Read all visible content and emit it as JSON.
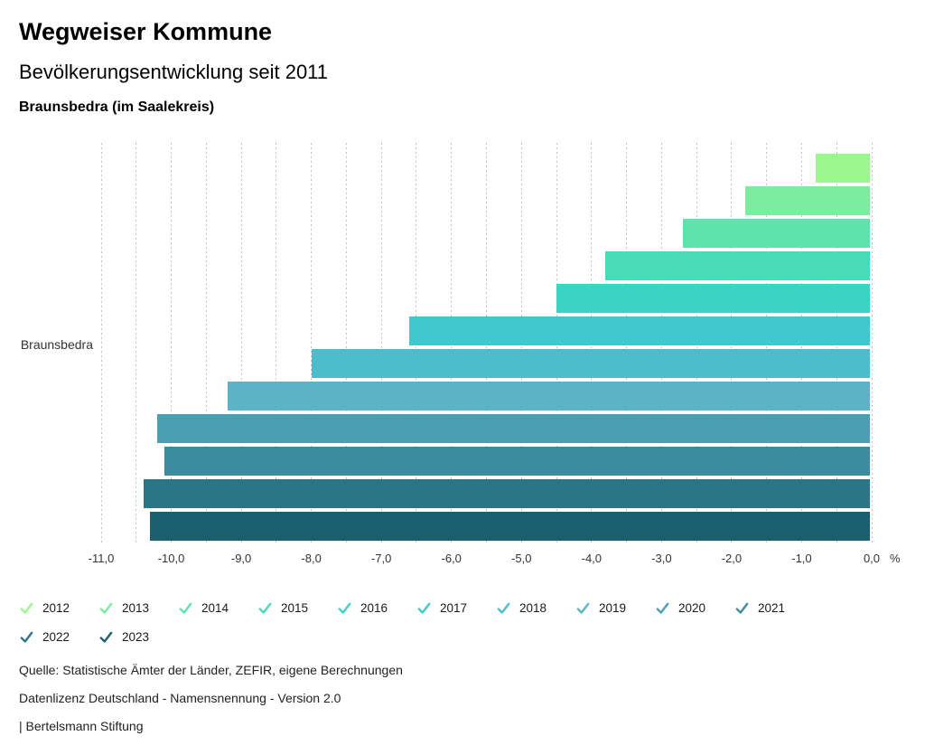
{
  "header": {
    "title": "Wegweiser Kommune",
    "subtitle": "Bevölkerungsentwicklung seit 2011",
    "region": "Braunsbedra (im Saalekreis)"
  },
  "chart_data": {
    "type": "bar",
    "orientation": "horizontal",
    "category_label": "Braunsbedra",
    "unit": "%",
    "xlim": [
      -11.0,
      0.0
    ],
    "grid_step": 0.5,
    "tick_step": 1.0,
    "tick_labels": [
      "-11,0",
      "-10,0",
      "-9,0",
      "-8,0",
      "-7,0",
      "-6,0",
      "-5,0",
      "-4,0",
      "-3,0",
      "-2,0",
      "-1,0",
      "0,0"
    ],
    "unit_label": "%",
    "grid": "dotted-vertical",
    "legend_position": "bottom",
    "series": [
      {
        "name": "2012",
        "value": -0.8,
        "color": "#99F78E"
      },
      {
        "name": "2013",
        "value": -1.8,
        "color": "#7CEC9E"
      },
      {
        "name": "2014",
        "value": -2.7,
        "color": "#5FE3AD"
      },
      {
        "name": "2015",
        "value": -3.8,
        "color": "#49DBB8"
      },
      {
        "name": "2016",
        "value": -4.5,
        "color": "#3DD3C4"
      },
      {
        "name": "2017",
        "value": -6.6,
        "color": "#41C7CE"
      },
      {
        "name": "2018",
        "value": -8.0,
        "color": "#4CBECB"
      },
      {
        "name": "2019",
        "value": -9.2,
        "color": "#5DB3C6"
      },
      {
        "name": "2020",
        "value": -10.2,
        "color": "#4A9FB3"
      },
      {
        "name": "2021",
        "value": -10.1,
        "color": "#3A8C9E"
      },
      {
        "name": "2022",
        "value": -10.4,
        "color": "#2A7586"
      },
      {
        "name": "2023",
        "value": -10.3,
        "color": "#1C5F6E"
      }
    ]
  },
  "legend": {
    "check_icon": "checkmark"
  },
  "footer": {
    "source": "Quelle: Statistische Ämter der Länder, ZEFIR, eigene Berechnungen",
    "license": "Datenlizenz Deutschland - Namensnennung - Version 2.0",
    "attribution": "| Bertelsmann Stiftung"
  }
}
